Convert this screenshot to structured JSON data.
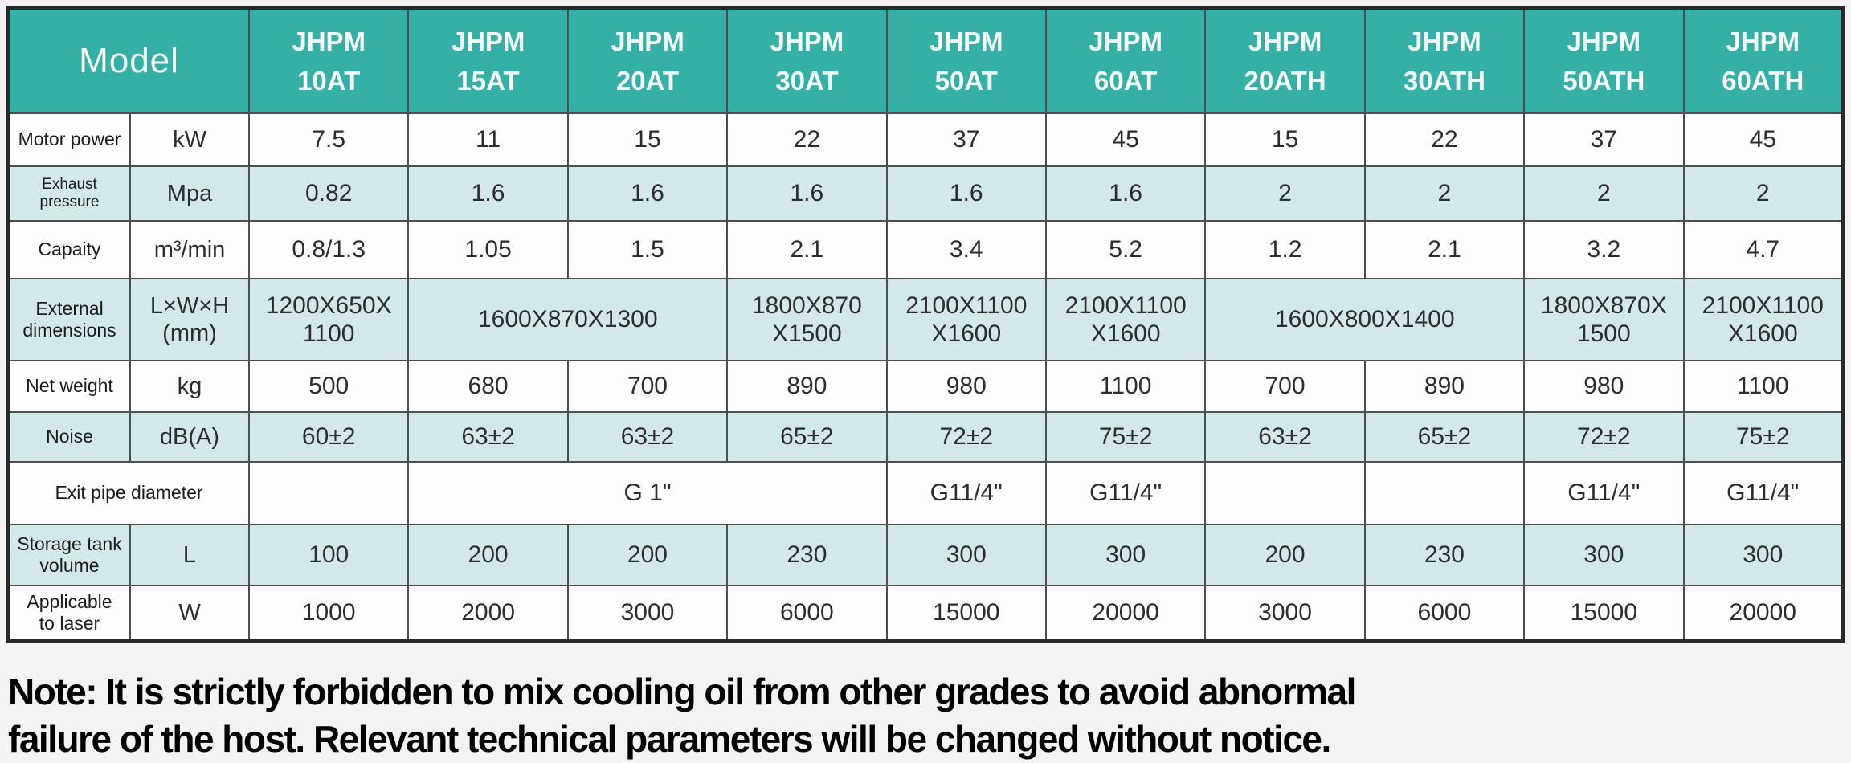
{
  "colors": {
    "header_bg": "#34b0a7",
    "header_text": "#f5fcfa",
    "tint_row_bg": "#d3e8e9",
    "white_row_bg": "#fdfdfd",
    "grid_line": "#4e4e4e",
    "outer_border": "#2a2a2a",
    "page_bg": "#f5f2f4",
    "value_text": "#2d2d2d"
  },
  "table": {
    "header": {
      "model_label": "Model",
      "models": [
        {
          "lines": [
            "JHPM",
            "10AT"
          ]
        },
        {
          "lines": [
            "JHPM",
            "15AT"
          ]
        },
        {
          "lines": [
            "JHPM",
            "20AT"
          ]
        },
        {
          "lines": [
            "JHPM",
            "30AT"
          ]
        },
        {
          "lines": [
            "JHPM",
            "50AT"
          ]
        },
        {
          "lines": [
            "JHPM",
            "60AT"
          ]
        },
        {
          "lines": [
            "JHPM",
            "20ATH"
          ]
        },
        {
          "lines": [
            "JHPM",
            "30ATH"
          ]
        },
        {
          "lines": [
            "JHPM",
            "50ATH"
          ]
        },
        {
          "lines": [
            "JHPM",
            "60ATH"
          ]
        }
      ]
    },
    "rows": [
      {
        "name": "motor-power",
        "tint": false,
        "cells": [
          {
            "kind": "label",
            "span": 1,
            "lines": [
              "Motor power"
            ]
          },
          {
            "kind": "unit",
            "span": 1,
            "lines": [
              "kW"
            ]
          },
          {
            "kind": "value",
            "span": 1,
            "lines": [
              "7.5"
            ]
          },
          {
            "kind": "value",
            "span": 1,
            "lines": [
              "11"
            ]
          },
          {
            "kind": "value",
            "span": 1,
            "lines": [
              "15"
            ]
          },
          {
            "kind": "value",
            "span": 1,
            "lines": [
              "22"
            ]
          },
          {
            "kind": "value",
            "span": 1,
            "lines": [
              "37"
            ]
          },
          {
            "kind": "value",
            "span": 1,
            "lines": [
              "45"
            ]
          },
          {
            "kind": "value",
            "span": 1,
            "lines": [
              "15"
            ]
          },
          {
            "kind": "value",
            "span": 1,
            "lines": [
              "22"
            ]
          },
          {
            "kind": "value",
            "span": 1,
            "lines": [
              "37"
            ]
          },
          {
            "kind": "value",
            "span": 1,
            "lines": [
              "45"
            ]
          }
        ]
      },
      {
        "name": "exhaust-pressure",
        "tint": true,
        "cells": [
          {
            "kind": "label",
            "span": 1,
            "lines": [
              "Exhaust pressure"
            ]
          },
          {
            "kind": "unit",
            "span": 1,
            "lines": [
              "Mpa"
            ]
          },
          {
            "kind": "value",
            "span": 1,
            "lines": [
              "0.82"
            ]
          },
          {
            "kind": "value",
            "span": 1,
            "lines": [
              "1.6"
            ]
          },
          {
            "kind": "value",
            "span": 1,
            "lines": [
              "1.6"
            ]
          },
          {
            "kind": "value",
            "span": 1,
            "lines": [
              "1.6"
            ]
          },
          {
            "kind": "value",
            "span": 1,
            "lines": [
              "1.6"
            ]
          },
          {
            "kind": "value",
            "span": 1,
            "lines": [
              "1.6"
            ]
          },
          {
            "kind": "value",
            "span": 1,
            "lines": [
              "2"
            ]
          },
          {
            "kind": "value",
            "span": 1,
            "lines": [
              "2"
            ]
          },
          {
            "kind": "value",
            "span": 1,
            "lines": [
              "2"
            ]
          },
          {
            "kind": "value",
            "span": 1,
            "lines": [
              "2"
            ]
          }
        ]
      },
      {
        "name": "capacity",
        "tint": false,
        "cells": [
          {
            "kind": "label",
            "span": 1,
            "lines": [
              "Capaity"
            ]
          },
          {
            "kind": "unit",
            "span": 1,
            "lines": [
              "m³/min"
            ]
          },
          {
            "kind": "value",
            "span": 1,
            "lines": [
              "0.8/1.3"
            ]
          },
          {
            "kind": "value",
            "span": 1,
            "lines": [
              "1.05"
            ]
          },
          {
            "kind": "value",
            "span": 1,
            "lines": [
              "1.5"
            ]
          },
          {
            "kind": "value",
            "span": 1,
            "lines": [
              "2.1"
            ]
          },
          {
            "kind": "value",
            "span": 1,
            "lines": [
              "3.4"
            ]
          },
          {
            "kind": "value",
            "span": 1,
            "lines": [
              "5.2"
            ]
          },
          {
            "kind": "value",
            "span": 1,
            "lines": [
              "1.2"
            ]
          },
          {
            "kind": "value",
            "span": 1,
            "lines": [
              "2.1"
            ]
          },
          {
            "kind": "value",
            "span": 1,
            "lines": [
              "3.2"
            ]
          },
          {
            "kind": "value",
            "span": 1,
            "lines": [
              "4.7"
            ]
          }
        ]
      },
      {
        "name": "external-dimensions",
        "tint": true,
        "cells": [
          {
            "kind": "label",
            "span": 1,
            "lines": [
              "External",
              "dimensions"
            ]
          },
          {
            "kind": "unit",
            "span": 1,
            "lines": [
              "L×W×H",
              "(mm)"
            ]
          },
          {
            "kind": "value",
            "span": 1,
            "lines": [
              "1200X650X",
              "1100"
            ]
          },
          {
            "kind": "value",
            "span": 2,
            "lines": [
              "1600X870X1300"
            ]
          },
          {
            "kind": "value",
            "span": 1,
            "lines": [
              "1800X870",
              "X1500"
            ]
          },
          {
            "kind": "value",
            "span": 1,
            "lines": [
              "2100X1100",
              "X1600"
            ]
          },
          {
            "kind": "value",
            "span": 1,
            "lines": [
              "2100X1100",
              "X1600"
            ]
          },
          {
            "kind": "value",
            "span": 2,
            "lines": [
              "1600X800X1400"
            ]
          },
          {
            "kind": "value",
            "span": 1,
            "lines": [
              "1800X870X",
              "1500"
            ]
          },
          {
            "kind": "value",
            "span": 1,
            "lines": [
              "2100X1100",
              "X1600"
            ]
          }
        ]
      },
      {
        "name": "net-weight",
        "tint": false,
        "cells": [
          {
            "kind": "label",
            "span": 1,
            "lines": [
              "Net weight"
            ]
          },
          {
            "kind": "unit",
            "span": 1,
            "lines": [
              "kg"
            ]
          },
          {
            "kind": "value",
            "span": 1,
            "lines": [
              "500"
            ]
          },
          {
            "kind": "value",
            "span": 1,
            "lines": [
              "680"
            ]
          },
          {
            "kind": "value",
            "span": 1,
            "lines": [
              "700"
            ]
          },
          {
            "kind": "value",
            "span": 1,
            "lines": [
              "890"
            ]
          },
          {
            "kind": "value",
            "span": 1,
            "lines": [
              "980"
            ]
          },
          {
            "kind": "value",
            "span": 1,
            "lines": [
              "1100"
            ]
          },
          {
            "kind": "value",
            "span": 1,
            "lines": [
              "700"
            ]
          },
          {
            "kind": "value",
            "span": 1,
            "lines": [
              "890"
            ]
          },
          {
            "kind": "value",
            "span": 1,
            "lines": [
              "980"
            ]
          },
          {
            "kind": "value",
            "span": 1,
            "lines": [
              "1100"
            ]
          }
        ]
      },
      {
        "name": "noise",
        "tint": true,
        "cells": [
          {
            "kind": "label",
            "span": 1,
            "lines": [
              "Noise"
            ]
          },
          {
            "kind": "unit",
            "span": 1,
            "lines": [
              "dB(A)"
            ]
          },
          {
            "kind": "value",
            "span": 1,
            "lines": [
              "60±2"
            ]
          },
          {
            "kind": "value",
            "span": 1,
            "lines": [
              "63±2"
            ]
          },
          {
            "kind": "value",
            "span": 1,
            "lines": [
              "63±2"
            ]
          },
          {
            "kind": "value",
            "span": 1,
            "lines": [
              "65±2"
            ]
          },
          {
            "kind": "value",
            "span": 1,
            "lines": [
              "72±2"
            ]
          },
          {
            "kind": "value",
            "span": 1,
            "lines": [
              "75±2"
            ]
          },
          {
            "kind": "value",
            "span": 1,
            "lines": [
              "63±2"
            ]
          },
          {
            "kind": "value",
            "span": 1,
            "lines": [
              "65±2"
            ]
          },
          {
            "kind": "value",
            "span": 1,
            "lines": [
              "72±2"
            ]
          },
          {
            "kind": "value",
            "span": 1,
            "lines": [
              "75±2"
            ]
          }
        ]
      },
      {
        "name": "exit-pipe-diameter",
        "tint": false,
        "cells": [
          {
            "kind": "label",
            "span": 2,
            "lines": [
              "Exit pipe diameter"
            ]
          },
          {
            "kind": "value",
            "span": 1,
            "lines": [
              ""
            ]
          },
          {
            "kind": "value",
            "span": 3,
            "lines": [
              "G 1\""
            ]
          },
          {
            "kind": "value",
            "span": 1,
            "lines": [
              "G11/4\""
            ]
          },
          {
            "kind": "value",
            "span": 1,
            "lines": [
              "G11/4\""
            ]
          },
          {
            "kind": "value",
            "span": 1,
            "lines": [
              ""
            ]
          },
          {
            "kind": "value",
            "span": 1,
            "lines": [
              ""
            ]
          },
          {
            "kind": "value",
            "span": 1,
            "lines": [
              "G11/4\""
            ]
          },
          {
            "kind": "value",
            "span": 1,
            "lines": [
              "G11/4\""
            ]
          }
        ]
      },
      {
        "name": "storage-tank-volume",
        "tint": true,
        "cells": [
          {
            "kind": "label",
            "span": 1,
            "lines": [
              "Storage tank",
              "volume"
            ]
          },
          {
            "kind": "unit",
            "span": 1,
            "lines": [
              "L"
            ]
          },
          {
            "kind": "value",
            "span": 1,
            "lines": [
              "100"
            ]
          },
          {
            "kind": "value",
            "span": 1,
            "lines": [
              "200"
            ]
          },
          {
            "kind": "value",
            "span": 1,
            "lines": [
              "200"
            ]
          },
          {
            "kind": "value",
            "span": 1,
            "lines": [
              "230"
            ]
          },
          {
            "kind": "value",
            "span": 1,
            "lines": [
              "300"
            ]
          },
          {
            "kind": "value",
            "span": 1,
            "lines": [
              "300"
            ]
          },
          {
            "kind": "value",
            "span": 1,
            "lines": [
              "200"
            ]
          },
          {
            "kind": "value",
            "span": 1,
            "lines": [
              "230"
            ]
          },
          {
            "kind": "value",
            "span": 1,
            "lines": [
              "300"
            ]
          },
          {
            "kind": "value",
            "span": 1,
            "lines": [
              "300"
            ]
          }
        ]
      },
      {
        "name": "applicable-to-laser",
        "tint": false,
        "cells": [
          {
            "kind": "label",
            "span": 1,
            "lines": [
              "Applicable",
              "to laser"
            ]
          },
          {
            "kind": "unit",
            "span": 1,
            "lines": [
              "W"
            ]
          },
          {
            "kind": "value",
            "span": 1,
            "lines": [
              "1000"
            ]
          },
          {
            "kind": "value",
            "span": 1,
            "lines": [
              "2000"
            ]
          },
          {
            "kind": "value",
            "span": 1,
            "lines": [
              "3000"
            ]
          },
          {
            "kind": "value",
            "span": 1,
            "lines": [
              "6000"
            ]
          },
          {
            "kind": "value",
            "span": 1,
            "lines": [
              "15000"
            ]
          },
          {
            "kind": "value",
            "span": 1,
            "lines": [
              "20000"
            ]
          },
          {
            "kind": "value",
            "span": 1,
            "lines": [
              "3000"
            ]
          },
          {
            "kind": "value",
            "span": 1,
            "lines": [
              "6000"
            ]
          },
          {
            "kind": "value",
            "span": 1,
            "lines": [
              "15000"
            ]
          },
          {
            "kind": "value",
            "span": 1,
            "lines": [
              "20000"
            ]
          }
        ]
      }
    ]
  },
  "note": {
    "lines": [
      "Note: It is strictly forbidden to mix cooling oil from other grades to avoid abnormal",
      "failure of the host. Relevant technical parameters will be changed without notice."
    ]
  }
}
